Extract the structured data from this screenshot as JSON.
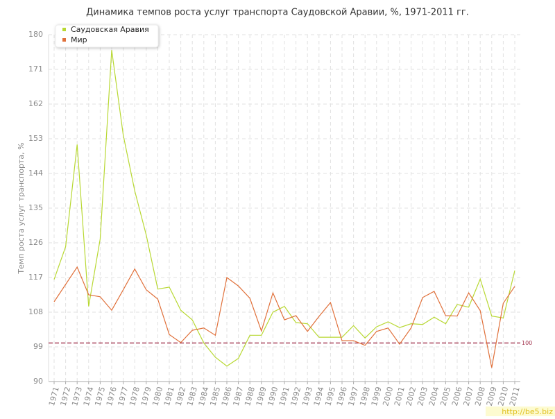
{
  "chart_data": {
    "type": "line",
    "title": "Динамика темпов роста услуг транспорта Саудовской Аравии, %, 1971-2011 гг.",
    "y_label": "Темп роста услуг транспорта, %",
    "categories": [
      "1971",
      "1972",
      "1973",
      "1974",
      "1975",
      "1976",
      "1977",
      "1978",
      "1979",
      "1980",
      "1981",
      "1982",
      "1983",
      "1984",
      "1985",
      "1986",
      "1987",
      "1988",
      "1989",
      "1990",
      "1991",
      "1992",
      "1993",
      "1994",
      "1995",
      "1996",
      "1997",
      "1998",
      "1999",
      "2000",
      "2001",
      "2002",
      "2003",
      "2004",
      "2005",
      "2006",
      "2007",
      "2008",
      "2009",
      "2010",
      "2011"
    ],
    "series": [
      {
        "name": "Саудовская Аравия",
        "color": "#b8d832",
        "values": [
          116.5,
          125,
          151.5,
          109.5,
          127,
          176,
          154,
          139.5,
          128,
          114,
          114.5,
          108.5,
          106,
          100,
          96.3,
          94,
          96,
          102,
          102,
          108,
          109.5,
          105.3,
          105,
          101.5,
          101.5,
          101.5,
          104.5,
          101.3,
          104.2,
          105.5,
          104,
          105,
          104.8,
          106.7,
          105,
          110,
          109.3,
          116.6,
          107,
          106.5,
          118.8
        ]
      },
      {
        "name": "Мир",
        "color": "#e0703a",
        "values": [
          110.7,
          115.2,
          119.7,
          112.5,
          112,
          108.5,
          113.8,
          119.2,
          113.8,
          111.4,
          102.2,
          100.1,
          103.3,
          103.9,
          102,
          117,
          114.8,
          111.6,
          103.1,
          113,
          106,
          107.1,
          103,
          106.9,
          110.5,
          100.6,
          100.6,
          99.4,
          103,
          103.9,
          99.7,
          103.9,
          111.8,
          113.4,
          107.1,
          107,
          113,
          108.4,
          93.6,
          110.3,
          114.7
        ]
      }
    ],
    "ylim": [
      90,
      180
    ],
    "yticks": [
      90,
      99,
      108,
      117,
      126,
      135,
      144,
      153,
      162,
      171,
      180
    ],
    "grid": true,
    "legend": "top-left",
    "reference_line": {
      "value": 100,
      "color": "#a0304a"
    },
    "watermark": "http://be5.biz"
  }
}
